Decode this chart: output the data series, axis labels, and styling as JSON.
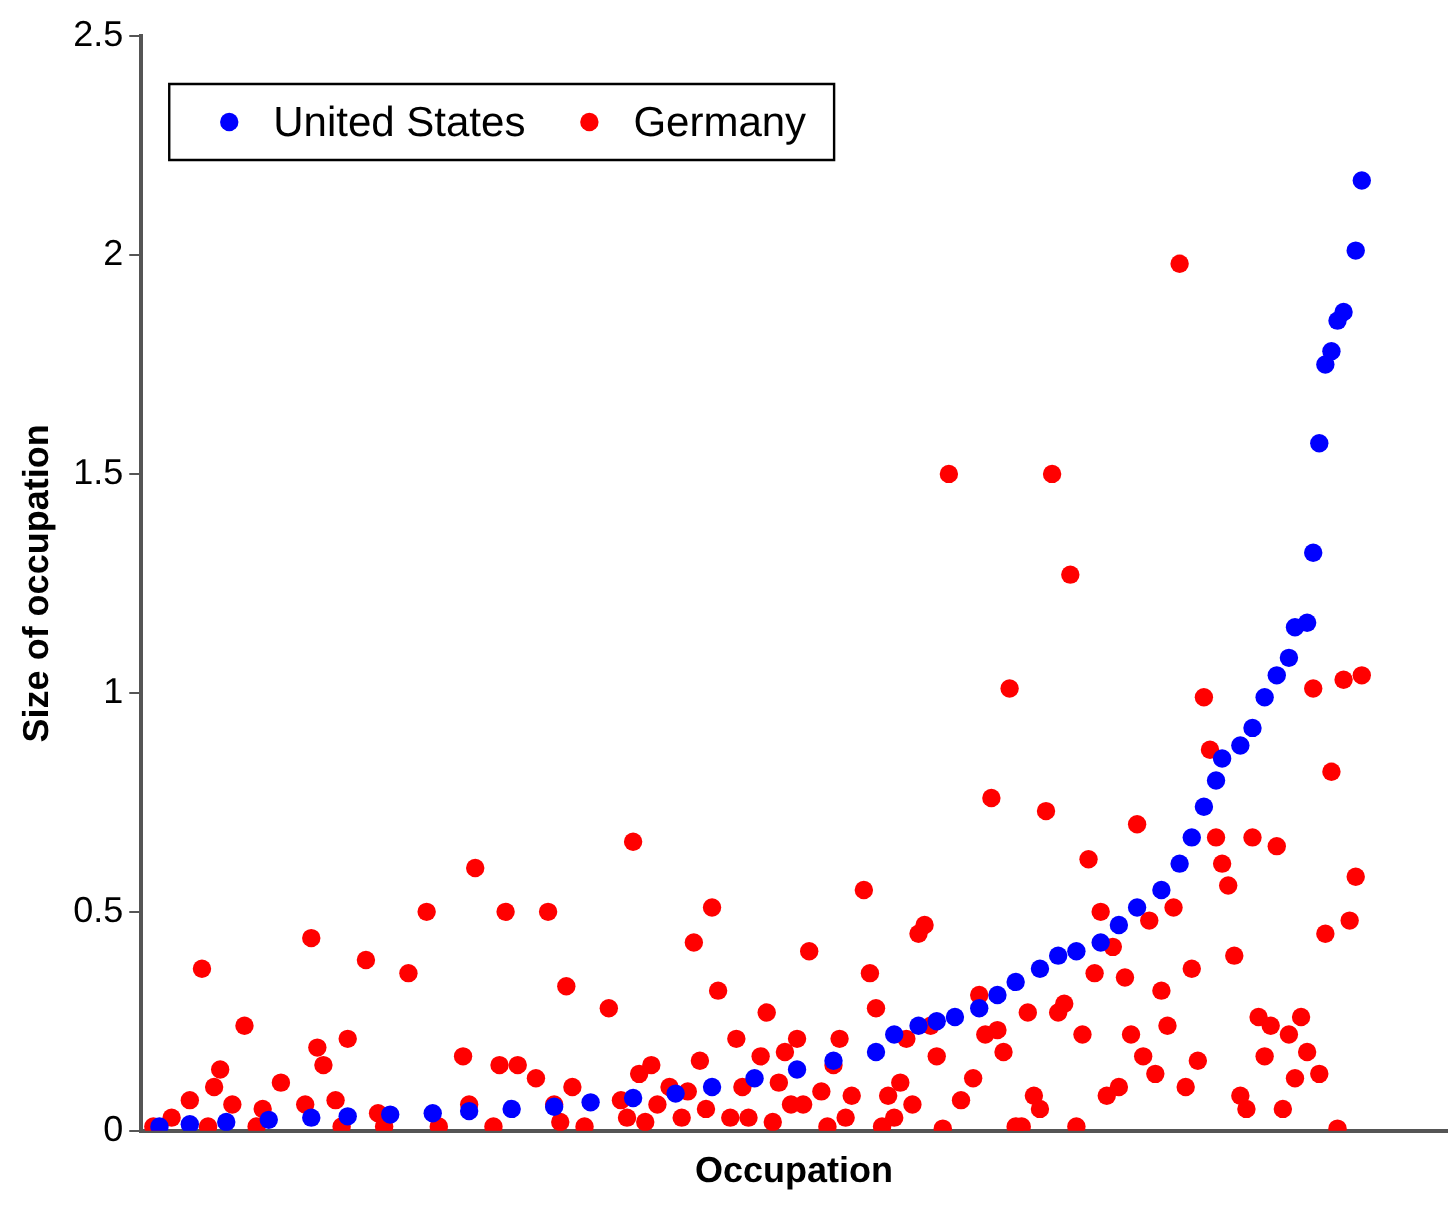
{
  "chart_data": {
    "type": "scatter",
    "xlabel": "Occupation",
    "ylabel": "Size of occupation",
    "categories": [
      null,
      null,
      null,
      null,
      null,
      null,
      null,
      null,
      null,
      null,
      null,
      null,
      null,
      null,
      null,
      null,
      null,
      null,
      null,
      null,
      null,
      null,
      null,
      null,
      null,
      null,
      null,
      null,
      null,
      null,
      null,
      null,
      null,
      null,
      null,
      null,
      null,
      null,
      null,
      null,
      null,
      null,
      null,
      null,
      null,
      null,
      null,
      null,
      null,
      null,
      null,
      null,
      null,
      null,
      null,
      null,
      null,
      null,
      null,
      null,
      null,
      null,
      null,
      null,
      null,
      null,
      null,
      null,
      null,
      null,
      null,
      null,
      null,
      null,
      null,
      null,
      null,
      null,
      null,
      null,
      null,
      null,
      null,
      null,
      null,
      null,
      null,
      null,
      null,
      null,
      null,
      null,
      null,
      null,
      null,
      null,
      null,
      null,
      null,
      null,
      null,
      null,
      null,
      null,
      null,
      null,
      null,
      null,
      null,
      null,
      null,
      null,
      null,
      null,
      null,
      null,
      null,
      null,
      null,
      null,
      null,
      null,
      null,
      null,
      null,
      null,
      null,
      null,
      null,
      null,
      null,
      null,
      null,
      null,
      null,
      null,
      null,
      null,
      null,
      null,
      null,
      null,
      null,
      null,
      null,
      null,
      null,
      null,
      null,
      null,
      null,
      null,
      null,
      null,
      null,
      null,
      null,
      null,
      null,
      null,
      null,
      null,
      null,
      null,
      null,
      null,
      null,
      null,
      null,
      null,
      null,
      null,
      null,
      null,
      null,
      null,
      null,
      null,
      null,
      null,
      null,
      null,
      null,
      null,
      null,
      null,
      null,
      null,
      null,
      null,
      null,
      null,
      null,
      null,
      null,
      null,
      null,
      null,
      null,
      null,
      null,
      null,
      null,
      null,
      null,
      null,
      null,
      null,
      null,
      null,
      null,
      null,
      null,
      null,
      null,
      null
    ],
    "ylim": [
      0,
      2.5
    ],
    "yticks": [
      0,
      0.5,
      1,
      1.5,
      2,
      2.5
    ],
    "tick_labels": "y",
    "legend": "top left",
    "marker": "circle",
    "series": [
      {
        "name": "United States",
        "color": "#0000ff",
        "values": [
          null,
          null,
          null,
          0.01,
          null,
          null,
          null,
          null,
          0.015,
          null,
          null,
          null,
          null,
          null,
          0.02,
          null,
          null,
          null,
          null,
          null,
          null,
          0.025,
          null,
          null,
          null,
          null,
          null,
          null,
          0.03,
          null,
          null,
          null,
          null,
          null,
          0.033,
          null,
          null,
          null,
          null,
          null,
          null,
          0.037,
          null,
          null,
          null,
          null,
          null,
          null,
          0.04,
          null,
          null,
          null,
          null,
          null,
          0.045,
          null,
          null,
          null,
          null,
          null,
          null,
          0.05,
          null,
          null,
          null,
          null,
          null,
          null,
          0.055,
          null,
          null,
          null,
          null,
          null,
          0.065,
          null,
          null,
          null,
          null,
          null,
          null,
          0.075,
          null,
          null,
          null,
          null,
          null,
          null,
          0.085,
          null,
          null,
          null,
          null,
          null,
          0.1,
          null,
          null,
          null,
          null,
          null,
          null,
          0.12,
          null,
          null,
          null,
          null,
          null,
          null,
          0.14,
          null,
          null,
          null,
          null,
          null,
          0.16,
          null,
          null,
          null,
          null,
          null,
          null,
          0.18,
          null,
          null,
          0.22,
          null,
          null,
          null,
          0.24,
          null,
          null,
          0.25,
          null,
          null,
          0.26,
          null,
          null,
          null,
          0.28,
          null,
          null,
          0.31,
          null,
          null,
          0.34,
          null,
          null,
          null,
          0.37,
          null,
          null,
          0.4,
          null,
          null,
          0.41,
          null,
          null,
          null,
          0.43,
          null,
          null,
          0.47,
          null,
          null,
          0.51,
          null,
          null,
          null,
          0.55,
          null,
          null,
          0.61,
          null,
          0.67,
          null,
          0.74,
          null,
          0.8,
          0.85,
          null,
          null,
          0.88,
          null,
          0.92,
          null,
          0.99,
          null,
          1.04,
          null,
          1.08,
          1.15,
          null,
          1.16,
          1.32,
          1.57,
          1.75,
          1.78,
          1.85,
          1.87,
          null,
          2.01,
          2.17,
          null,
          null,
          null,
          null,
          null,
          null,
          null,
          null,
          null,
          null,
          null,
          null,
          null,
          null
        ]
      },
      {
        "name": "Germany",
        "color": "#ff0000",
        "values": [
          null,
          null,
          0.01,
          null,
          null,
          0.03,
          null,
          null,
          0.07,
          null,
          0.37,
          0.01,
          0.1,
          0.14,
          null,
          0.06,
          null,
          0.24,
          null,
          0.01,
          0.05,
          null,
          null,
          0.11,
          null,
          null,
          null,
          0.06,
          0.44,
          0.19,
          0.15,
          null,
          0.07,
          0.01,
          0.21,
          null,
          null,
          0.39,
          null,
          0.04,
          0.01,
          null,
          null,
          null,
          0.36,
          null,
          null,
          0.5,
          null,
          0.01,
          null,
          null,
          null,
          0.17,
          0.06,
          0.6,
          null,
          null,
          0.01,
          0.15,
          0.5,
          null,
          0.15,
          null,
          null,
          0.12,
          null,
          0.5,
          0.06,
          0.02,
          0.33,
          0.1,
          null,
          0.01,
          null,
          null,
          null,
          0.28,
          null,
          0.07,
          0.03,
          0.66,
          0.13,
          0.02,
          0.15,
          0.06,
          null,
          0.1,
          null,
          0.03,
          0.09,
          0.43,
          0.16,
          0.05,
          0.51,
          0.32,
          null,
          0.03,
          0.21,
          0.1,
          0.03,
          null,
          0.17,
          0.27,
          0.02,
          0.11,
          0.18,
          0.06,
          0.21,
          0.06,
          0.41,
          null,
          0.09,
          0.01,
          0.15,
          0.21,
          0.03,
          0.08,
          null,
          0.55,
          0.36,
          0.28,
          0.01,
          0.08,
          0.03,
          0.11,
          0.21,
          0.06,
          0.45,
          0.47,
          0.24,
          0.17,
          0.005,
          1.5,
          null,
          0.07,
          null,
          0.12,
          0.31,
          0.22,
          0.76,
          0.23,
          0.18,
          1.01,
          0.01,
          0.01,
          0.27,
          0.08,
          0.05,
          0.73,
          1.5,
          0.27,
          0.29,
          1.27,
          0.01,
          0.22,
          0.62,
          0.36,
          0.5,
          0.08,
          0.42,
          0.1,
          0.35,
          0.22,
          0.7,
          0.17,
          0.48,
          0.13,
          0.32,
          0.24,
          0.51,
          1.98,
          0.1,
          0.37,
          0.16,
          0.99,
          0.87,
          0.67,
          0.61,
          0.56,
          0.4,
          0.08,
          0.05,
          0.67,
          0.26,
          0.17,
          0.24,
          0.65,
          0.05,
          0.22,
          0.12,
          0.26,
          0.18,
          1.01,
          0.13,
          0.45,
          0.82,
          0.005,
          1.03,
          0.48,
          0.58,
          1.04,
          null,
          null,
          null,
          null,
          null,
          null,
          null,
          null,
          null,
          null,
          null,
          null,
          null,
          null
        ]
      }
    ]
  }
}
